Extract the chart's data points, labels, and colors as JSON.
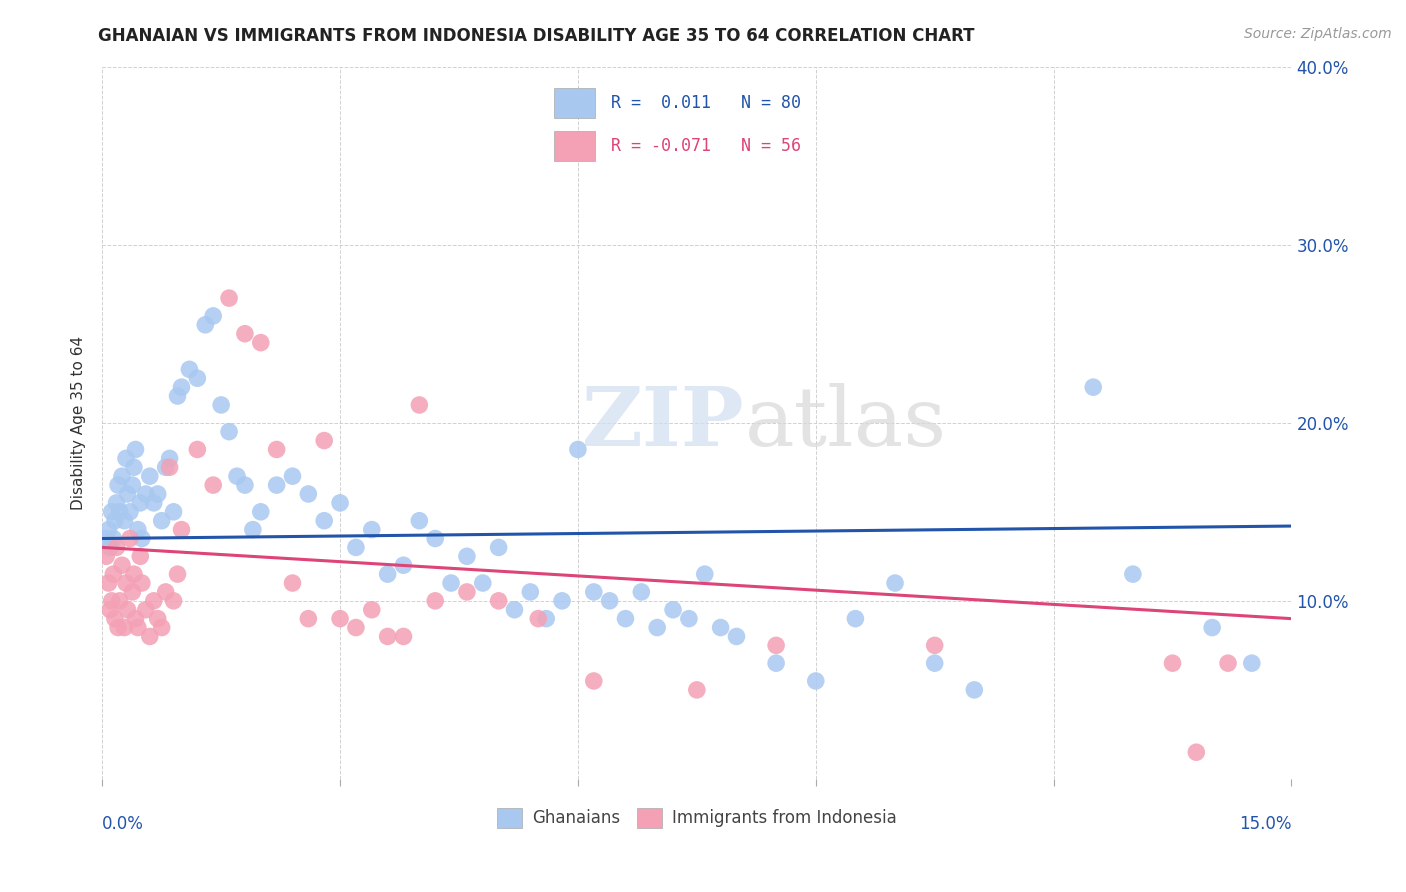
{
  "title": "GHANAIAN VS IMMIGRANTS FROM INDONESIA DISABILITY AGE 35 TO 64 CORRELATION CHART",
  "source": "Source: ZipAtlas.com",
  "ylabel": "Disability Age 35 to 64",
  "xmin": 0.0,
  "xmax": 15.0,
  "ymin": 0.0,
  "ymax": 40.0,
  "yticks": [
    10.0,
    20.0,
    30.0,
    40.0
  ],
  "xtick_positions": [
    0.0,
    3.0,
    6.0,
    9.0,
    12.0,
    15.0
  ],
  "blue_scatter_color": "#a8c8f0",
  "blue_line_color": "#2255aa",
  "pink_scatter_color": "#f4a0b5",
  "pink_line_color": "#dd4477",
  "watermark_text": "ZIPatlas",
  "blue_line_start_y": 13.5,
  "blue_line_end_y": 14.2,
  "pink_line_start_y": 13.0,
  "pink_line_end_y": 9.0,
  "ghanaians_x": [
    0.05,
    0.08,
    0.1,
    0.12,
    0.14,
    0.16,
    0.18,
    0.2,
    0.22,
    0.25,
    0.28,
    0.3,
    0.32,
    0.35,
    0.38,
    0.4,
    0.42,
    0.45,
    0.48,
    0.5,
    0.55,
    0.6,
    0.65,
    0.7,
    0.75,
    0.8,
    0.85,
    0.9,
    0.95,
    1.0,
    1.1,
    1.2,
    1.3,
    1.4,
    1.5,
    1.6,
    1.7,
    1.8,
    1.9,
    2.0,
    2.2,
    2.4,
    2.6,
    2.8,
    3.0,
    3.2,
    3.4,
    3.6,
    3.8,
    4.0,
    4.2,
    4.4,
    4.6,
    4.8,
    5.0,
    5.2,
    5.4,
    5.6,
    5.8,
    6.0,
    6.2,
    6.4,
    6.6,
    6.8,
    7.0,
    7.2,
    7.4,
    7.6,
    7.8,
    8.0,
    8.5,
    9.0,
    9.5,
    10.0,
    10.5,
    11.0,
    12.5,
    13.0,
    14.0,
    14.5
  ],
  "ghanaians_y": [
    13.5,
    14.0,
    13.0,
    15.0,
    13.5,
    14.5,
    15.5,
    16.5,
    15.0,
    17.0,
    14.5,
    18.0,
    16.0,
    15.0,
    16.5,
    17.5,
    18.5,
    14.0,
    15.5,
    13.5,
    16.0,
    17.0,
    15.5,
    16.0,
    14.5,
    17.5,
    18.0,
    15.0,
    21.5,
    22.0,
    23.0,
    22.5,
    25.5,
    26.0,
    21.0,
    19.5,
    17.0,
    16.5,
    14.0,
    15.0,
    16.5,
    17.0,
    16.0,
    14.5,
    15.5,
    13.0,
    14.0,
    11.5,
    12.0,
    14.5,
    13.5,
    11.0,
    12.5,
    11.0,
    13.0,
    9.5,
    10.5,
    9.0,
    10.0,
    18.5,
    10.5,
    10.0,
    9.0,
    10.5,
    8.5,
    9.5,
    9.0,
    11.5,
    8.5,
    8.0,
    6.5,
    5.5,
    9.0,
    11.0,
    6.5,
    5.0,
    22.0,
    11.5,
    8.5,
    6.5
  ],
  "indonesia_x": [
    0.05,
    0.08,
    0.1,
    0.12,
    0.14,
    0.16,
    0.18,
    0.2,
    0.22,
    0.25,
    0.28,
    0.3,
    0.32,
    0.35,
    0.38,
    0.4,
    0.42,
    0.45,
    0.48,
    0.5,
    0.55,
    0.6,
    0.65,
    0.7,
    0.75,
    0.8,
    0.85,
    0.9,
    0.95,
    1.0,
    1.2,
    1.4,
    1.6,
    1.8,
    2.0,
    2.2,
    2.4,
    2.6,
    2.8,
    3.0,
    3.2,
    3.4,
    3.6,
    3.8,
    4.0,
    4.2,
    4.6,
    5.0,
    5.5,
    6.2,
    7.5,
    8.5,
    10.5,
    13.5,
    13.8,
    14.2
  ],
  "indonesia_y": [
    12.5,
    11.0,
    9.5,
    10.0,
    11.5,
    9.0,
    13.0,
    8.5,
    10.0,
    12.0,
    8.5,
    11.0,
    9.5,
    13.5,
    10.5,
    11.5,
    9.0,
    8.5,
    12.5,
    11.0,
    9.5,
    8.0,
    10.0,
    9.0,
    8.5,
    10.5,
    17.5,
    10.0,
    11.5,
    14.0,
    18.5,
    16.5,
    27.0,
    25.0,
    24.5,
    18.5,
    11.0,
    9.0,
    19.0,
    9.0,
    8.5,
    9.5,
    8.0,
    8.0,
    21.0,
    10.0,
    10.5,
    10.0,
    9.0,
    5.5,
    5.0,
    7.5,
    7.5,
    6.5,
    1.5,
    6.5
  ]
}
